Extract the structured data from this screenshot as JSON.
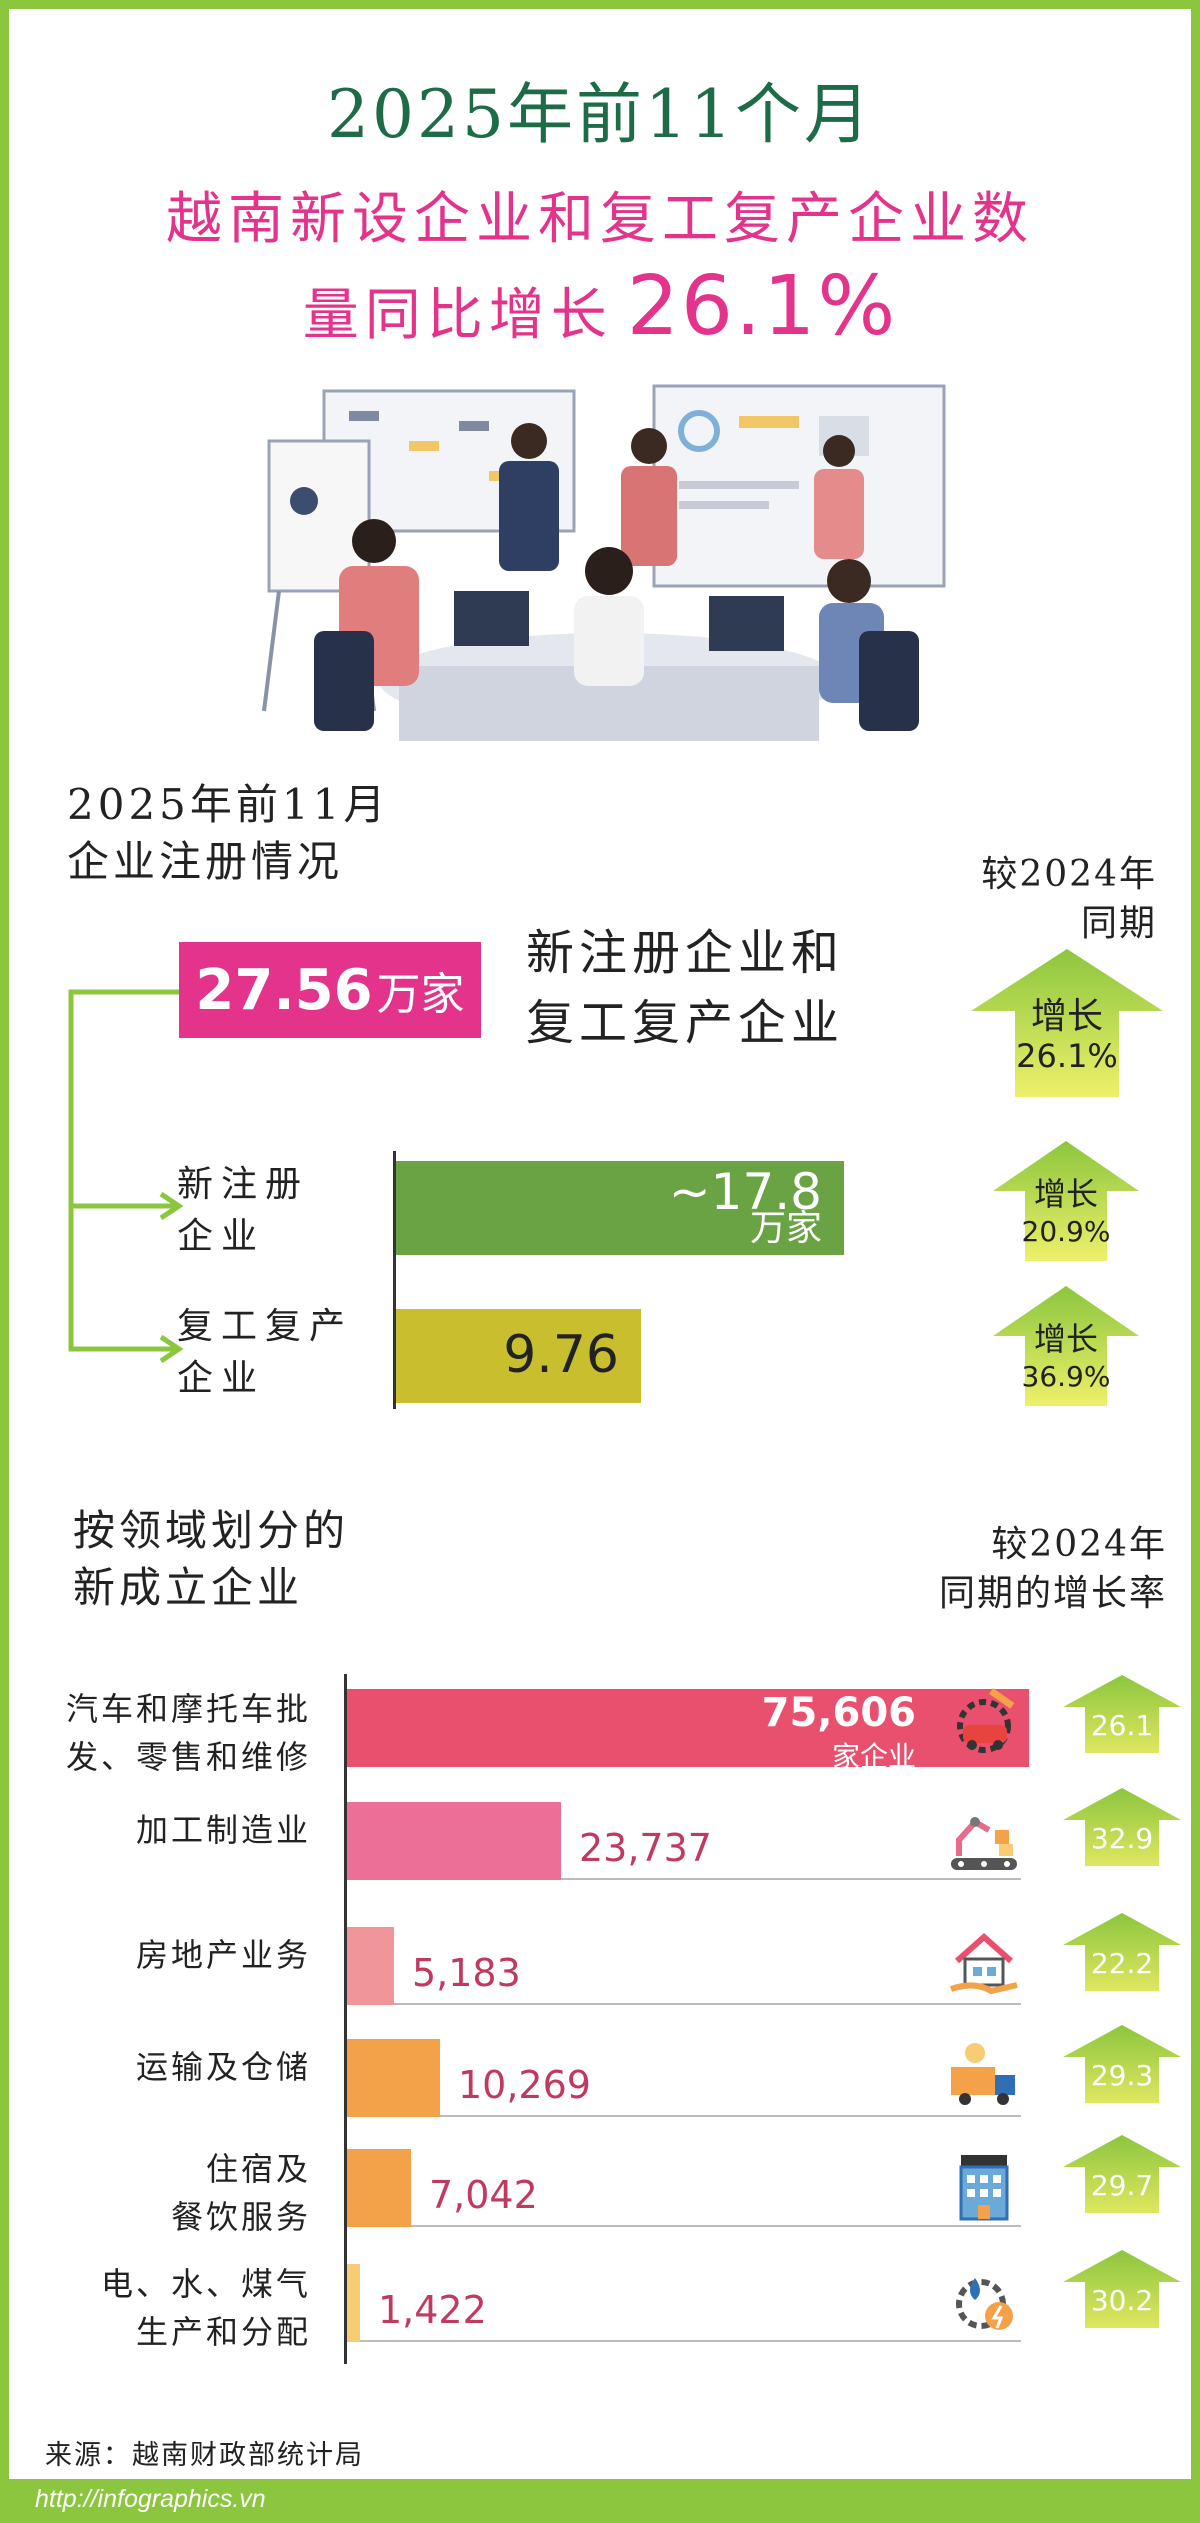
{
  "header": {
    "line1": "2025年前11个月",
    "line2": "越南新设企业和复工复产企业数",
    "line3_text": "量同比增长",
    "line3_value": "26.1%"
  },
  "registration": {
    "title_line1": "2025年前11月",
    "title_line2": "企业注册情况",
    "compare_line1": "较2024年",
    "compare_line2": "同期",
    "total": {
      "value": "27.56",
      "unit": "万家",
      "label_line1": "新注册企业和",
      "label_line2": "复工复产企业",
      "growth_word": "增长",
      "growth_value": "26.1%"
    },
    "new_reg": {
      "label_line1": "新注册",
      "label_line2": "企业",
      "value": "~17.8",
      "unit": "万家",
      "amount": 17.8,
      "growth_word": "增长",
      "growth_value": "20.9%"
    },
    "resumed": {
      "label_line1": "复工复产",
      "label_line2": "企业",
      "value": "9.76",
      "amount": 9.76,
      "growth_word": "增长",
      "growth_value": "36.9%"
    }
  },
  "sectors": {
    "title_line1": "按领域划分的",
    "title_line2": "新成立企业",
    "compare_line1": "较2024年",
    "compare_line2": "同期的增长率",
    "top_unit": "家企业",
    "items": [
      {
        "label_line1": "汽车和摩托车批",
        "label_line2": "发、零售和维修",
        "display": "75,606",
        "value": 75606,
        "growth": "26.1",
        "icon": "car-repair-icon",
        "color": "#e8506d"
      },
      {
        "label_line1": "加工制造业",
        "label_line2": "",
        "display": "23,737",
        "value": 23737,
        "growth": "32.9",
        "icon": "factory-robot-icon",
        "color": "#ec6f98"
      },
      {
        "label_line1": "房地产业务",
        "label_line2": "",
        "display": "5,183",
        "value": 5183,
        "growth": "22.2",
        "icon": "house-hand-icon",
        "color": "#f0969a"
      },
      {
        "label_line1": "运输及仓储",
        "label_line2": "",
        "display": "10,269",
        "value": 10269,
        "growth": "29.3",
        "icon": "delivery-truck-icon",
        "color": "#f4a24a"
      },
      {
        "label_line1": "住宿及",
        "label_line2": "餐饮服务",
        "display": "7,042",
        "value": 7042,
        "growth": "29.7",
        "icon": "hotel-icon",
        "color": "#f4a24a"
      },
      {
        "label_line1": "电、水、煤气",
        "label_line2": "生产和分配",
        "display": "1,422",
        "value": 1422,
        "growth": "30.2",
        "icon": "energy-gear-icon",
        "color": "#f7cc74"
      }
    ]
  },
  "source": "来源：越南财政部统计局",
  "footer_url": "http://infographics.vn"
}
